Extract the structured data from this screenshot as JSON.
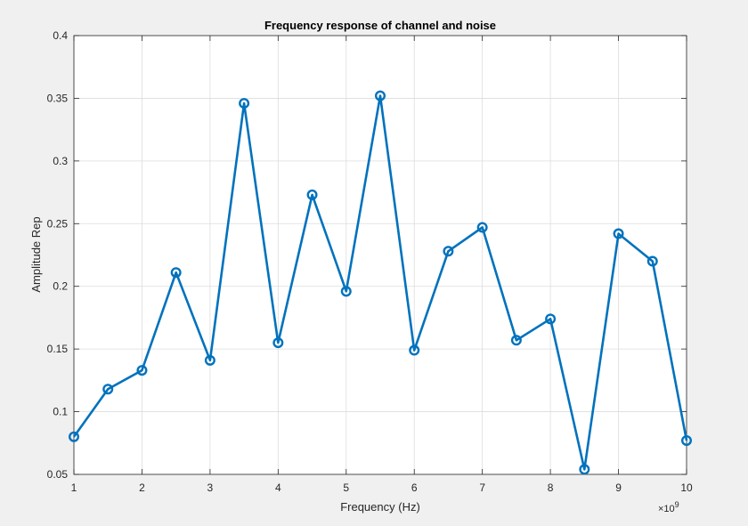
{
  "chart_data": {
    "type": "line",
    "title": "Frequency response of channel and noise",
    "xlabel": "Frequency (Hz)",
    "ylabel": "Amplitude Rep",
    "x_exponent_label": "×10",
    "x_exponent_power": "9",
    "xlim": [
      1,
      10
    ],
    "ylim": [
      0.05,
      0.4
    ],
    "xticks": [
      "1",
      "2",
      "3",
      "4",
      "5",
      "6",
      "7",
      "8",
      "9",
      "10"
    ],
    "yticks": [
      "0.05",
      "0.1",
      "0.15",
      "0.2",
      "0.25",
      "0.3",
      "0.35",
      "0.4"
    ],
    "grid": true,
    "marker": "circle",
    "line_color": "#0072bd",
    "series": [
      {
        "x": [
          1,
          1.5,
          2,
          2.5,
          3,
          3.5,
          4,
          4.5,
          5,
          5.5,
          6,
          6.5,
          7,
          7.5,
          8,
          8.5,
          9,
          9.5,
          10
        ],
        "values": [
          0.08,
          0.118,
          0.133,
          0.211,
          0.141,
          0.346,
          0.155,
          0.273,
          0.196,
          0.352,
          0.149,
          0.228,
          0.247,
          0.157,
          0.174,
          0.054,
          0.242,
          0.22,
          0.077
        ]
      }
    ]
  }
}
